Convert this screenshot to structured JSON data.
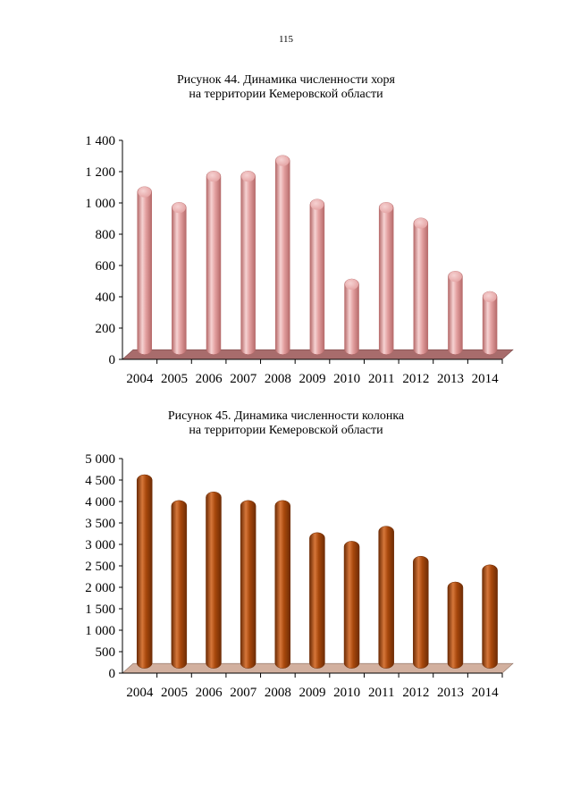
{
  "page": {
    "number": "115"
  },
  "captions": [
    {
      "line1": "Рисунок 44. Динамика численности хоря",
      "line2": "на территории Кемеровской области"
    },
    {
      "line1": "Рисунок 45. Динамика численности колонка",
      "line2": "на территории Кемеровской области"
    }
  ],
  "chart_data": [
    {
      "type": "bar",
      "title": "Рисунок 44. Динамика численности хоря на территории Кемеровской области",
      "xlabel": "",
      "ylabel": "",
      "categories": [
        "2004",
        "2005",
        "2006",
        "2007",
        "2008",
        "2009",
        "2010",
        "2011",
        "2012",
        "2013",
        "2014"
      ],
      "values": [
        1070,
        970,
        1170,
        1170,
        1270,
        990,
        480,
        970,
        870,
        530,
        400
      ],
      "ylim": [
        0,
        1400
      ],
      "yticks": [
        0,
        200,
        400,
        600,
        800,
        1000,
        1200,
        1400
      ],
      "ytick_labels": [
        "0",
        "200",
        "400",
        "600",
        "800",
        "1 000",
        "1 200",
        "1 400"
      ],
      "grid": false,
      "colors": {
        "bar": "#e3a0a0",
        "bar_dark": "#b66a6a",
        "bar_light": "#f6d2d2",
        "floor": "#a86c6c",
        "floor_edge": "#7a4848"
      }
    },
    {
      "type": "bar",
      "title": "Рисунок 45. Динамика численности колонка на территории Кемеровской области",
      "xlabel": "",
      "ylabel": "",
      "categories": [
        "2004",
        "2005",
        "2006",
        "2007",
        "2008",
        "2009",
        "2010",
        "2011",
        "2012",
        "2013",
        "2014"
      ],
      "values": [
        4500,
        3900,
        4100,
        3900,
        3900,
        3150,
        2950,
        3300,
        2600,
        2000,
        2400
      ],
      "ylim": [
        0,
        5000
      ],
      "yticks": [
        0,
        500,
        1000,
        1500,
        2000,
        2500,
        3000,
        3500,
        4000,
        4500,
        5000
      ],
      "ytick_labels": [
        "0",
        "500",
        "1 000",
        "1 500",
        "2 000",
        "2 500",
        "3 000",
        "3 500",
        "4 000",
        "4 500",
        "5 000"
      ],
      "grid": false,
      "colors": {
        "bar": "#a8480c",
        "bar_dark": "#6e2c05",
        "bar_light": "#d6773a",
        "floor": "#d2b09f",
        "floor_edge": "#8e7265"
      }
    }
  ]
}
